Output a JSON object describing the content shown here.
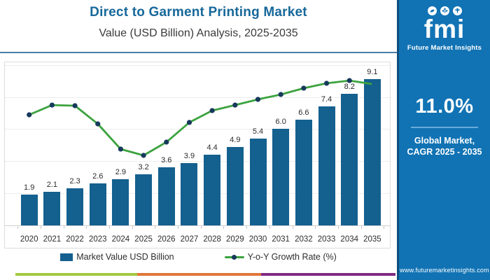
{
  "header": {
    "title": "Direct to Garment Printing Market",
    "subtitle": "Value (USD Billion) Analysis, 2025-2035"
  },
  "chart_data": {
    "type": "bar",
    "combo": "bar + line overlay",
    "title": "Direct to Garment Printing Market Value (USD Billion) Analysis, 2025-2035",
    "categories": [
      "2020",
      "2021",
      "2022",
      "2023",
      "2024",
      "2025",
      "2026",
      "2027",
      "2028",
      "2029",
      "2030",
      "2031",
      "2032",
      "2033",
      "2034",
      "2035"
    ],
    "series": [
      {
        "name": "Market Value USD Billion",
        "type": "bar",
        "color": "#14608f",
        "values": [
          1.9,
          2.1,
          2.3,
          2.6,
          2.9,
          3.2,
          3.6,
          3.9,
          4.4,
          4.9,
          5.4,
          6.0,
          6.6,
          7.4,
          8.2,
          9.1
        ],
        "labels": [
          "1.9",
          "2.1",
          "2.3",
          "2.6",
          "2.9",
          "3.2",
          "3.6",
          "3.9",
          "4.4",
          "4.9",
          "5.4",
          "6.0",
          "6.6",
          "7.4",
          "8.2",
          "9.1"
        ]
      },
      {
        "name": "Y-o-Y Growth Rate (%)",
        "type": "line",
        "line_color": "#3ca33f",
        "marker_color": "#17395c",
        "values_labeled": false,
        "approx_height_pct_of_plot": [
          68.1,
          74.1,
          73.7,
          62.5,
          47.0,
          43.1,
          51.3,
          63.4,
          70.7,
          74.1,
          77.6,
          80.6,
          84.5,
          87.5,
          89.2
        ],
        "tail_end_height_pct": 87.1
      }
    ],
    "xlabel": "",
    "ylabel": "",
    "ylim": [
      0,
      10
    ],
    "grid": "horizontal gridlines every 2 units, axes unlabeled",
    "legend_position": "bottom"
  },
  "side_panel": {
    "logo_text": "fmi",
    "logo_subtext": "Future Market Insights",
    "cagr_value": "11.0%",
    "cagr_label_line1": "Global Market,",
    "cagr_label_line2": "CAGR 2025 - 2035",
    "website": "www.futuremarketinsights.com",
    "bg_color": "#1173b4"
  },
  "footer_strip": {
    "colors": [
      "#a3c940",
      "#e0763a",
      "#7f2a82"
    ]
  },
  "theme": {
    "title_color": "#17689a",
    "rule_color": "#4c7fa7",
    "panel_edge_color": "#0d4f7e",
    "panel_divider_color": "#6aabda",
    "grid_color": "#ededed",
    "baseline_color": "#d0d0d0",
    "tick_color": "#c6c6c6"
  }
}
